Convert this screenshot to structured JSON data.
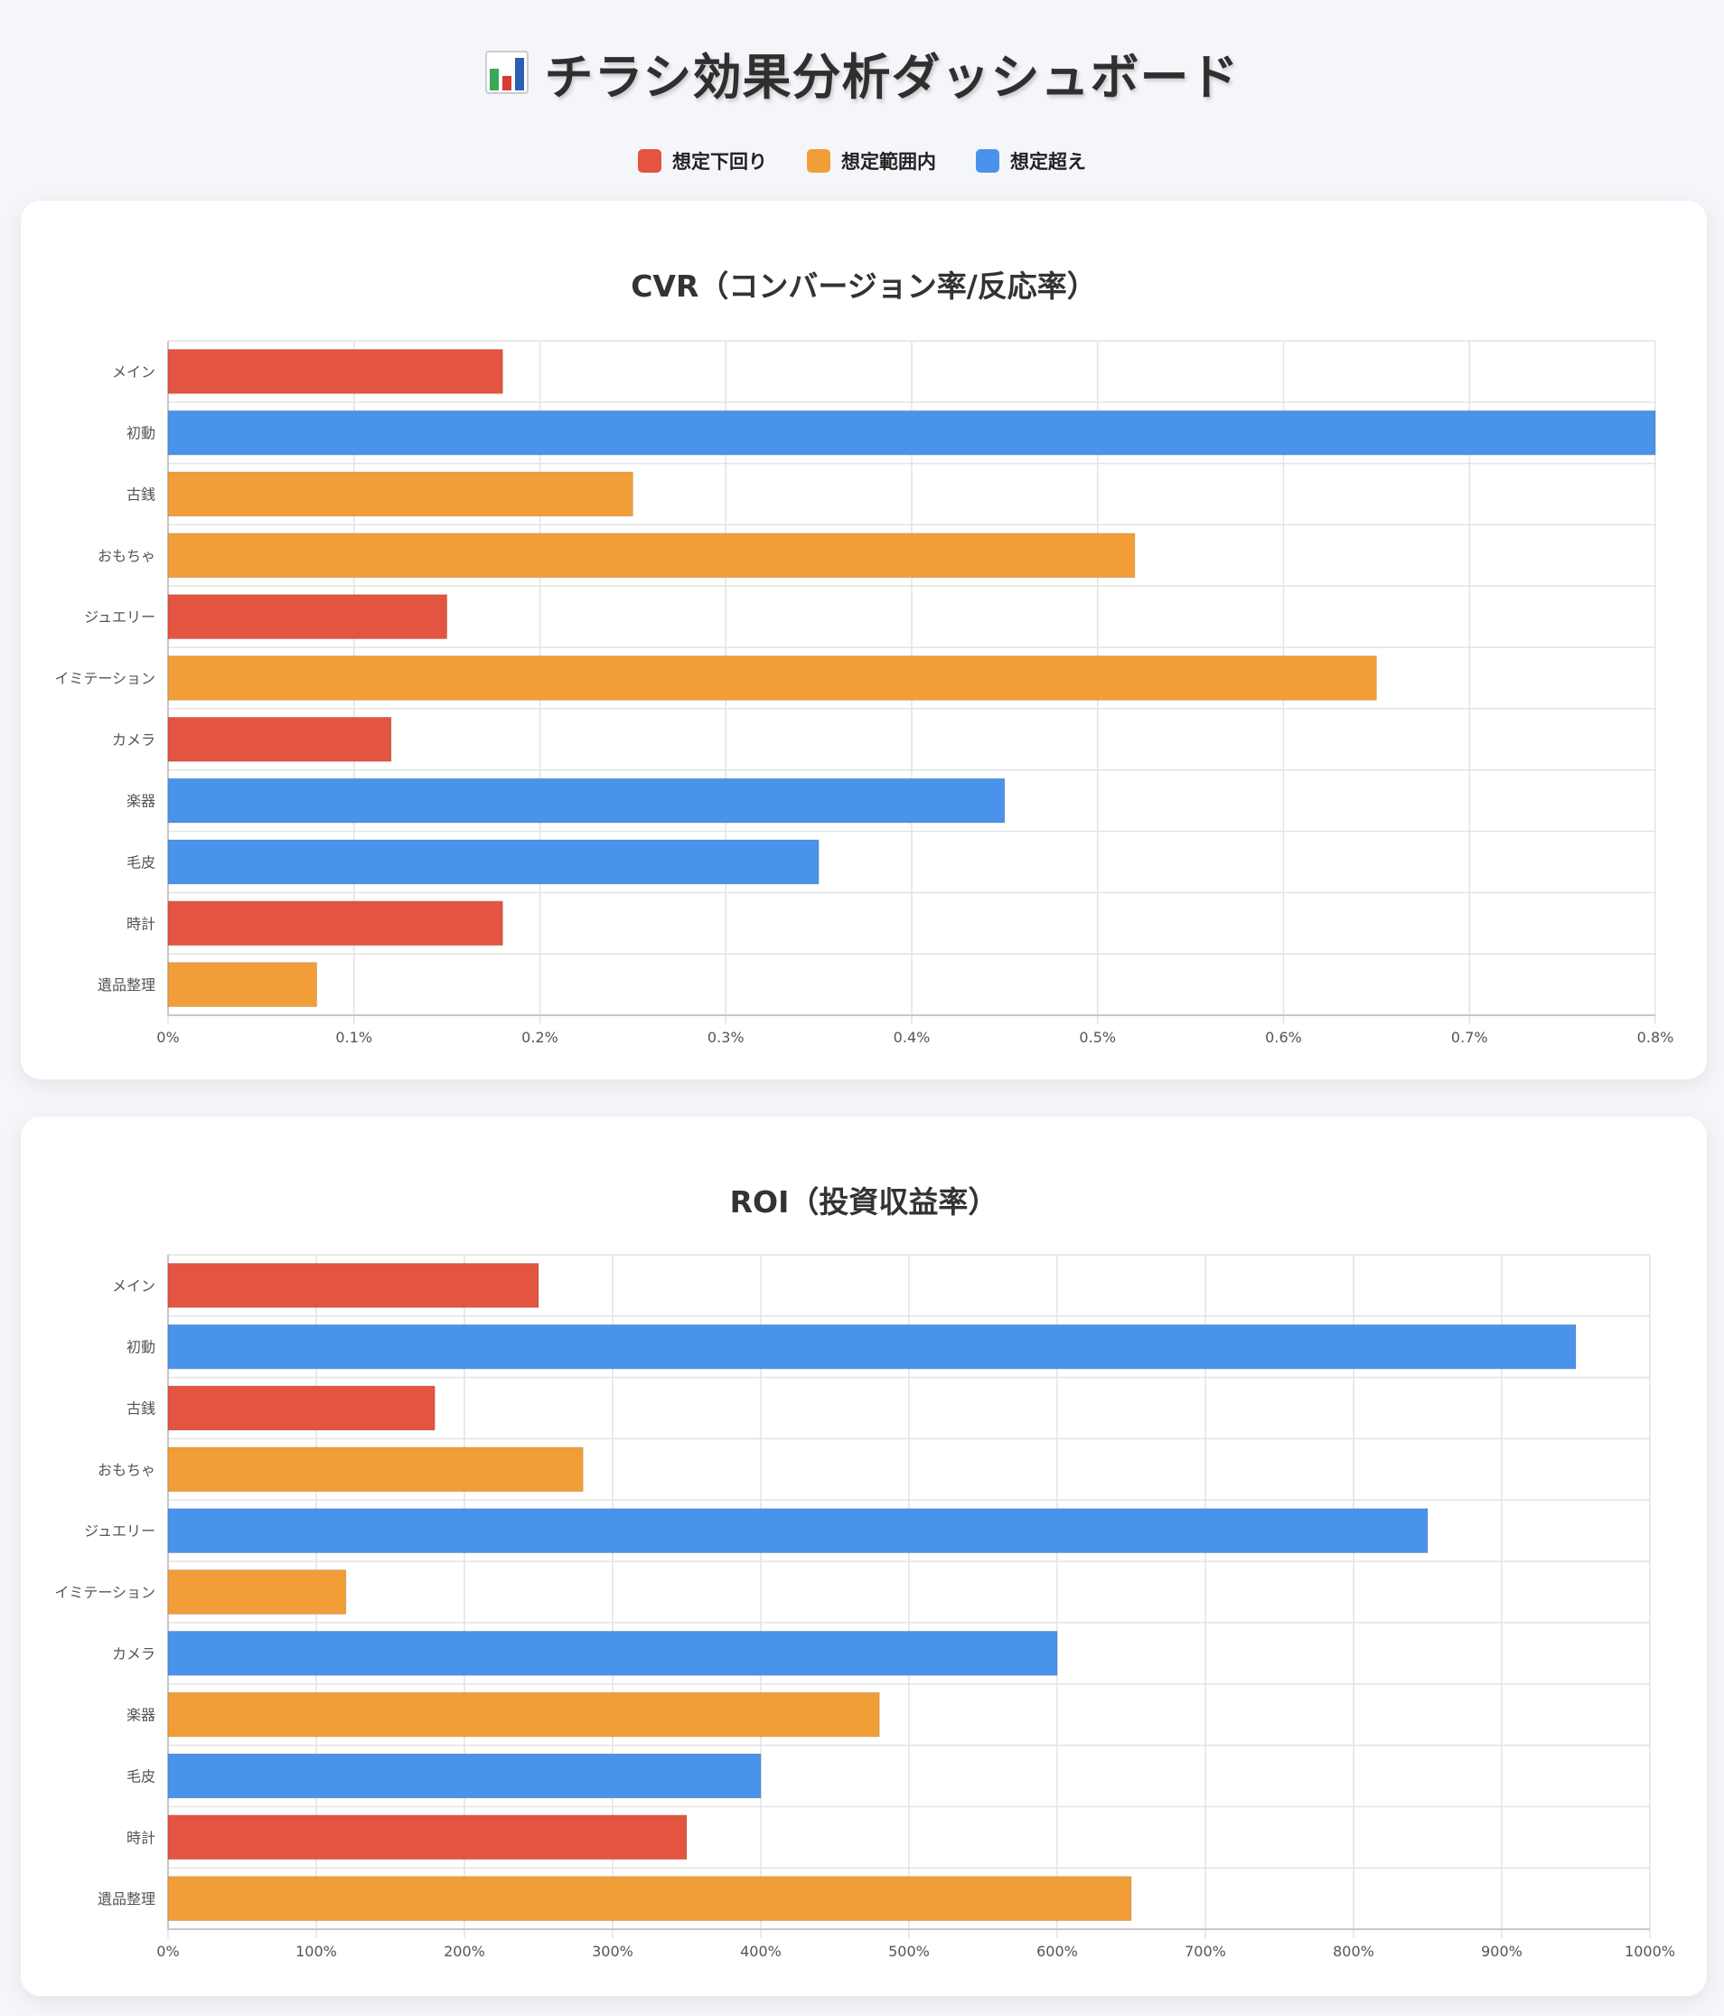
{
  "header": {
    "icon": "bar-chart-icon",
    "title": "チラシ効果分析ダッシュボード"
  },
  "legend": [
    {
      "label": "想定下回り",
      "color": "#e35441"
    },
    {
      "label": "想定範囲内",
      "color": "#f19e39"
    },
    {
      "label": "想定超え",
      "color": "#4a93ea"
    }
  ],
  "chart_data": [
    {
      "type": "bar",
      "orientation": "horizontal",
      "title": "CVR（コンバージョン率/反応率）",
      "categories": [
        "メイン",
        "初動",
        "古銭",
        "おもちゃ",
        "ジュエリー",
        "イミテーション",
        "カメラ",
        "楽器",
        "毛皮",
        "時計",
        "遺品整理"
      ],
      "values": [
        0.18,
        0.8,
        0.25,
        0.52,
        0.15,
        0.65,
        0.12,
        0.45,
        0.35,
        0.18,
        0.08
      ],
      "status": [
        "想定下回り",
        "想定超え",
        "想定範囲内",
        "想定範囲内",
        "想定下回り",
        "想定範囲内",
        "想定下回り",
        "想定超え",
        "想定超え",
        "想定下回り",
        "想定範囲内"
      ],
      "xlim": [
        0,
        0.8
      ],
      "x_ticks": [
        "0%",
        "0.1%",
        "0.2%",
        "0.3%",
        "0.4%",
        "0.5%",
        "0.6%",
        "0.7%",
        "0.8%"
      ],
      "grid": true
    },
    {
      "type": "bar",
      "orientation": "horizontal",
      "title": "ROI（投資収益率）",
      "categories": [
        "メイン",
        "初動",
        "古銭",
        "おもちゃ",
        "ジュエリー",
        "イミテーション",
        "カメラ",
        "楽器",
        "毛皮",
        "時計",
        "遺品整理"
      ],
      "values": [
        250,
        950,
        180,
        280,
        850,
        120,
        600,
        480,
        400,
        350,
        650
      ],
      "status": [
        "想定下回り",
        "想定超え",
        "想定下回り",
        "想定範囲内",
        "想定超え",
        "想定範囲内",
        "想定超え",
        "想定範囲内",
        "想定超え",
        "想定下回り",
        "想定範囲内"
      ],
      "xlim": [
        0,
        1000
      ],
      "x_ticks": [
        "0%",
        "100%",
        "200%",
        "300%",
        "400%",
        "500%",
        "600%",
        "700%",
        "800%",
        "900%",
        "1000%"
      ],
      "grid": true
    }
  ]
}
